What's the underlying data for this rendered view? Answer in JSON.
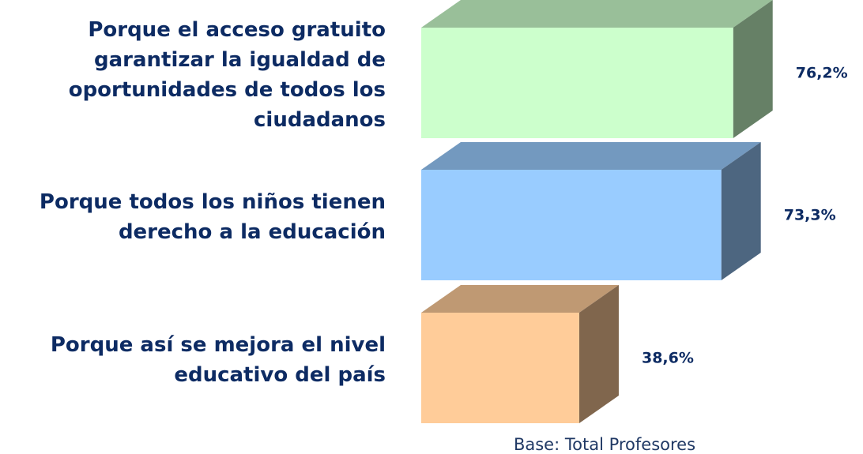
{
  "chart_data": {
    "type": "bar3d",
    "categories": [
      "Porque el acceso gratuito garantizar la igualdad de oportunidades de todos los ciudadanos",
      "Porque todos los niños tienen derecho a la educación",
      "Porque así se mejora el nivel educativo del país"
    ],
    "values": [
      76.2,
      73.3,
      38.6
    ],
    "value_labels": [
      "76,2%",
      "73,3%",
      "38,6%"
    ],
    "colors": [
      "#ccffcc",
      "#99ccff",
      "#ffcc99"
    ],
    "note": "Base: Total Profesores"
  }
}
